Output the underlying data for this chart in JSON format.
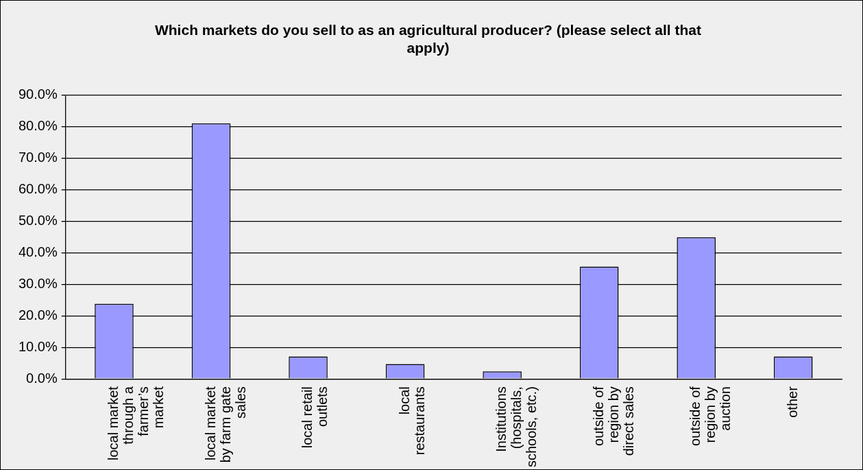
{
  "chart_data": {
    "type": "bar",
    "title": "Which markets do you sell to as an agricultural producer? (please select all that apply)",
    "categories": [
      "local market through a farmer’s market",
      "local market by farm gate sales",
      "local retail outlets",
      "local restaurants",
      "Institutions (hospitals, schools, etc.)",
      "outside of region by direct sales",
      "outside of region by auction",
      "other"
    ],
    "values": [
      23.8,
      81.0,
      7.1,
      4.7,
      2.4,
      35.6,
      44.9,
      7.1
    ],
    "color": "#9999ff",
    "ylim": [
      0,
      90
    ],
    "yticks": [
      {
        "value": 0,
        "label": "0.0%"
      },
      {
        "value": 10,
        "label": "10.0%"
      },
      {
        "value": 20,
        "label": "20.0%"
      },
      {
        "value": 30,
        "label": "30.0%"
      },
      {
        "value": 40,
        "label": "40.0%"
      },
      {
        "value": 50,
        "label": "50.0%"
      },
      {
        "value": 60,
        "label": "60.0%"
      },
      {
        "value": 70,
        "label": "70.0%"
      },
      {
        "value": 80,
        "label": "80.0%"
      },
      {
        "value": 90,
        "label": "90.0%"
      }
    ],
    "grid": "y",
    "legend": false
  }
}
